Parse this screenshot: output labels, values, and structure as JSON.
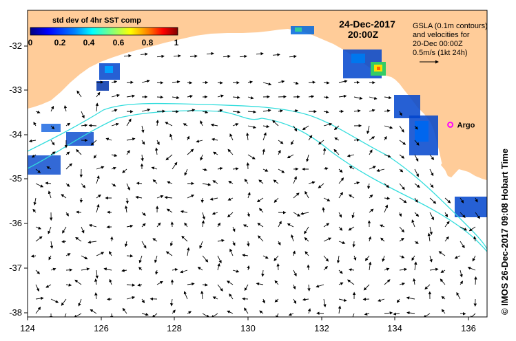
{
  "title": {
    "date": "24-Dec-2017",
    "time": "20:00Z"
  },
  "colorbar": {
    "title": "std dev of 4hr SST comp",
    "ticks": [
      "0",
      "0.2",
      "0.4",
      "0.6",
      "0.8",
      "1"
    ],
    "colors": [
      "#00007f",
      "#0000ff",
      "#007fff",
      "#00ffff",
      "#7fff7f",
      "#ffff00",
      "#ff7f00",
      "#ff0000",
      "#7f0000"
    ]
  },
  "legend": {
    "line1": "GSLA (0.1m contours)",
    "line2": "and velocities for",
    "line3": "20-Dec 00:00Z",
    "line4": "0.5m/s (1kt 24h)"
  },
  "argo": {
    "label": "Argo",
    "color": "#ff00ff",
    "lon": 135.5,
    "lat": -33.85
  },
  "credit": "© IMOS 26-Dec-2017 09:08 Hobart Time",
  "axes": {
    "x_ticks": [
      "124",
      "126",
      "128",
      "130",
      "132",
      "134",
      "136"
    ],
    "y_ticks": [
      "-32",
      "-33",
      "-34",
      "-35",
      "-36",
      "-37",
      "-38"
    ],
    "lon_range": [
      124,
      136.5
    ],
    "lat_range": [
      -38.05,
      -31.35
    ]
  },
  "colors": {
    "land": "#ffcc99",
    "contour": "#33dddd",
    "arrow": "#000000"
  }
}
